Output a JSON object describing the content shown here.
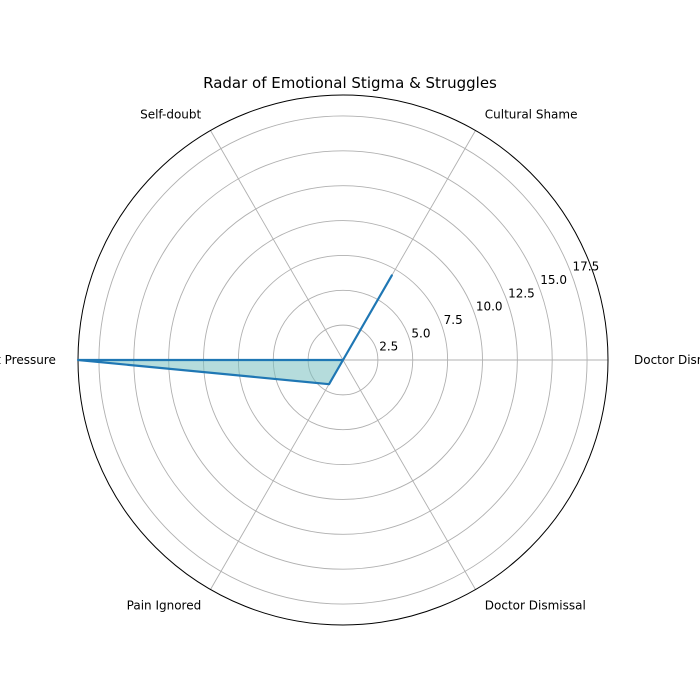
{
  "chart_data": {
    "type": "radar",
    "title": "Radar of Emotional Stigma & Struggles",
    "categories": [
      "Doctor Dismissal",
      "Cultural Shame",
      "Self-doubt",
      "Diet Pressure",
      "Pain Ignored",
      "Doctor Dismissal"
    ],
    "values": [
      0,
      7,
      0,
      19,
      2,
      0
    ],
    "rlim": [
      0,
      19
    ],
    "r_ticks": [
      2.5,
      5.0,
      7.5,
      10.0,
      12.5,
      15.0,
      17.5
    ],
    "r_tick_labels": [
      "2.5",
      "5.0",
      "7.5",
      "10.0",
      "12.5",
      "15.0",
      "17.5"
    ],
    "grid": true,
    "colors": {
      "line": "#1f77b4",
      "fill": "#79c0c0"
    }
  }
}
